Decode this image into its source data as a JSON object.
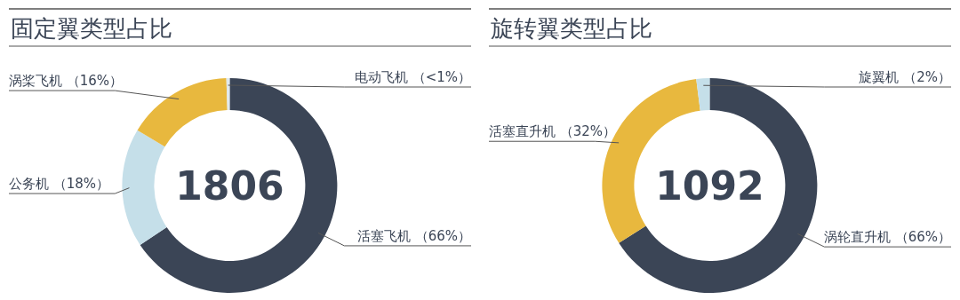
{
  "chart_data": [
    {
      "type": "donut",
      "title": "固定翼类型占比",
      "categories": [
        "活塞飞机",
        "公务机",
        "涡桨飞机",
        "电动飞机"
      ],
      "values": [
        66,
        18,
        16,
        0.5
      ],
      "value_labels": [
        "（66%）",
        "（18%）",
        "（16%）",
        "（<1%）"
      ],
      "colors": [
        "#3b4556",
        "#c5dfe9",
        "#e8b83e",
        "#dfe9ee"
      ],
      "annotations": [
        "1806"
      ]
    },
    {
      "type": "donut",
      "title": "旋转翼类型占比",
      "categories": [
        "涡轮直升机",
        "活塞直升机",
        "旋翼机"
      ],
      "values": [
        66,
        32,
        2
      ],
      "value_labels": [
        "（66%）",
        "（32%）",
        "（2%）"
      ],
      "colors": [
        "#3b4556",
        "#e8b83e",
        "#c5dfe9"
      ],
      "annotations": [
        "1092"
      ]
    }
  ]
}
